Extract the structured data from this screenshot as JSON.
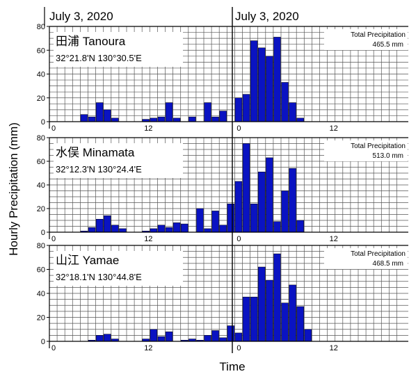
{
  "figure": {
    "date_label_left": "July 3, 2020",
    "date_label_right": "July 3, 2020",
    "ylabel": "Hourly Precipitation (mm)",
    "xlabel": "Time",
    "total_label": "Total Precipitation"
  },
  "chart_data": [
    {
      "type": "bar",
      "station_name": "田浦 Tanoura",
      "coordinates": "32°21.8'N 130°30.5'E",
      "total_precipitation": "465.5 mm",
      "x_ticks": [
        "0",
        "12",
        "0",
        "12"
      ],
      "y_ticks": [
        "0",
        "20",
        "40",
        "60",
        "80"
      ],
      "ylim": [
        0,
        80
      ],
      "bar_color": "#0a13c2",
      "hours": [
        4,
        5,
        6,
        7,
        8,
        12,
        13,
        14,
        15,
        16,
        18,
        20,
        21,
        22,
        24,
        25,
        26,
        27,
        28,
        29,
        30,
        31,
        32,
        33
      ],
      "values": [
        6,
        4,
        16,
        10,
        3,
        2,
        3,
        4,
        16,
        3,
        4,
        16,
        4,
        9,
        20,
        23,
        68,
        62,
        55,
        71,
        33,
        16,
        3,
        0
      ]
    },
    {
      "type": "bar",
      "station_name": "水俣 Minamata",
      "coordinates": "32°12.3'N 130°24.4'E",
      "total_precipitation": "513.0 mm",
      "x_ticks": [
        "0",
        "12",
        "0",
        "12"
      ],
      "y_ticks": [
        "0",
        "20",
        "40",
        "60",
        "80"
      ],
      "ylim": [
        0,
        80
      ],
      "bar_color": "#0a13c2",
      "hours": [
        4,
        5,
        6,
        7,
        8,
        9,
        12,
        13,
        14,
        15,
        16,
        17,
        19,
        20,
        21,
        22,
        23,
        24,
        25,
        26,
        27,
        28,
        29,
        30,
        31,
        32
      ],
      "values": [
        1,
        4,
        11,
        14,
        6,
        3,
        1,
        3,
        6,
        4,
        8,
        7,
        20,
        3,
        18,
        6,
        24,
        43,
        75,
        24,
        51,
        63,
        9,
        35,
        54,
        10
      ]
    },
    {
      "type": "bar",
      "station_name": "山江 Yamae",
      "coordinates": "32°18.1'N 130°44.8'E",
      "total_precipitation": "468.5 mm",
      "x_ticks": [
        "0",
        "12",
        "0",
        "12"
      ],
      "y_ticks": [
        "0",
        "20",
        "40",
        "60",
        "80"
      ],
      "ylim": [
        0,
        80
      ],
      "bar_color": "#0a13c2",
      "hours": [
        5,
        6,
        7,
        8,
        12,
        13,
        14,
        15,
        17,
        18,
        19,
        20,
        21,
        22,
        23,
        24,
        25,
        26,
        27,
        28,
        29,
        30,
        31,
        32,
        33
      ],
      "values": [
        1,
        5,
        6,
        2,
        2,
        10,
        4,
        8,
        1,
        2,
        1,
        5,
        9,
        3,
        13,
        7,
        37,
        37,
        62,
        51,
        73,
        32,
        47,
        29,
        10
      ]
    }
  ]
}
